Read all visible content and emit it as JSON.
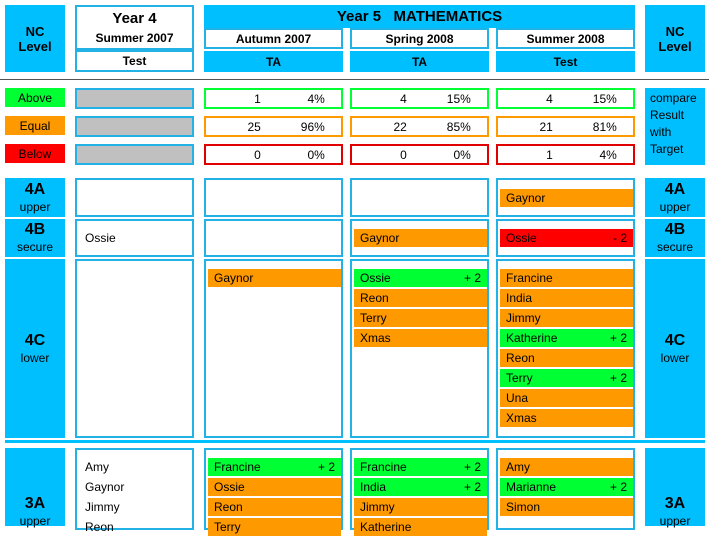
{
  "headers": {
    "nc_level": "NC Level",
    "year4": "Year 4",
    "year4_term": "Summer 2007",
    "year4_type": "Test",
    "year5_title": "Year 5   MATHEMATICS",
    "terms": [
      {
        "label": "Autumn 2007",
        "type": "TA"
      },
      {
        "label": "Spring 2008",
        "type": "TA"
      },
      {
        "label": "Summer 2008",
        "type": "Test"
      }
    ]
  },
  "comparison": {
    "rows": [
      {
        "label": "Above",
        "cols": [
          {
            "n": "1",
            "p": "4%"
          },
          {
            "n": "4",
            "p": "15%"
          },
          {
            "n": "4",
            "p": "15%"
          }
        ]
      },
      {
        "label": "Equal",
        "cols": [
          {
            "n": "25",
            "p": "96%"
          },
          {
            "n": "22",
            "p": "85%"
          },
          {
            "n": "21",
            "p": "81%"
          }
        ]
      },
      {
        "label": "Below",
        "cols": [
          {
            "n": "0",
            "p": "0%"
          },
          {
            "n": "0",
            "p": "0%"
          },
          {
            "n": "1",
            "p": "4%"
          }
        ]
      }
    ],
    "note": "compare Result with Target"
  },
  "levels": [
    {
      "code": "4A",
      "band": "upper"
    },
    {
      "code": "4B",
      "band": "secure"
    },
    {
      "code": "4C",
      "band": "lower"
    },
    {
      "code": "3A",
      "band": "upper"
    }
  ],
  "year4_names": {
    "4B": [
      "Ossie"
    ],
    "3A": [
      "Amy",
      "Gaynor",
      "Jimmy",
      "Reon"
    ]
  },
  "pills": {
    "autumn": {
      "4C": [
        {
          "name": "Gaynor",
          "delta": ""
        }
      ],
      "3A": [
        {
          "name": "Francine",
          "delta": "+ 2"
        },
        {
          "name": "Ossie",
          "delta": ""
        },
        {
          "name": "Reon",
          "delta": ""
        },
        {
          "name": "Terry",
          "delta": ""
        }
      ]
    },
    "spring": {
      "4B": [
        {
          "name": "Gaynor",
          "delta": ""
        }
      ],
      "4C": [
        {
          "name": "Ossie",
          "delta": "+ 2"
        },
        {
          "name": "Reon",
          "delta": ""
        },
        {
          "name": "Terry",
          "delta": ""
        },
        {
          "name": "Xmas",
          "delta": ""
        }
      ],
      "3A": [
        {
          "name": "Francine",
          "delta": "+ 2"
        },
        {
          "name": "India",
          "delta": "+ 2"
        },
        {
          "name": "Jimmy",
          "delta": ""
        },
        {
          "name": "Katherine",
          "delta": ""
        }
      ]
    },
    "summer": {
      "4A": [
        {
          "name": "Gaynor",
          "delta": ""
        }
      ],
      "4B": [
        {
          "name": "Ossie",
          "delta": "- 2"
        }
      ],
      "4C": [
        {
          "name": "Francine",
          "delta": ""
        },
        {
          "name": "India",
          "delta": ""
        },
        {
          "name": "Jimmy",
          "delta": ""
        },
        {
          "name": "Katherine",
          "delta": "+ 2"
        },
        {
          "name": "Reon",
          "delta": ""
        },
        {
          "name": "Terry",
          "delta": "+ 2"
        },
        {
          "name": "Una",
          "delta": ""
        },
        {
          "name": "Xmas",
          "delta": ""
        }
      ],
      "3A": [
        {
          "name": "Amy",
          "delta": ""
        },
        {
          "name": "Marianne",
          "delta": "+ 2"
        },
        {
          "name": "Simon",
          "delta": ""
        }
      ]
    }
  },
  "colors": {
    "header_cyan": "#00bfff",
    "border_blue": "#22b2e6",
    "above_green": "#00ff33",
    "equal_orange": "#ff9900",
    "below_red": "#ff0000"
  }
}
